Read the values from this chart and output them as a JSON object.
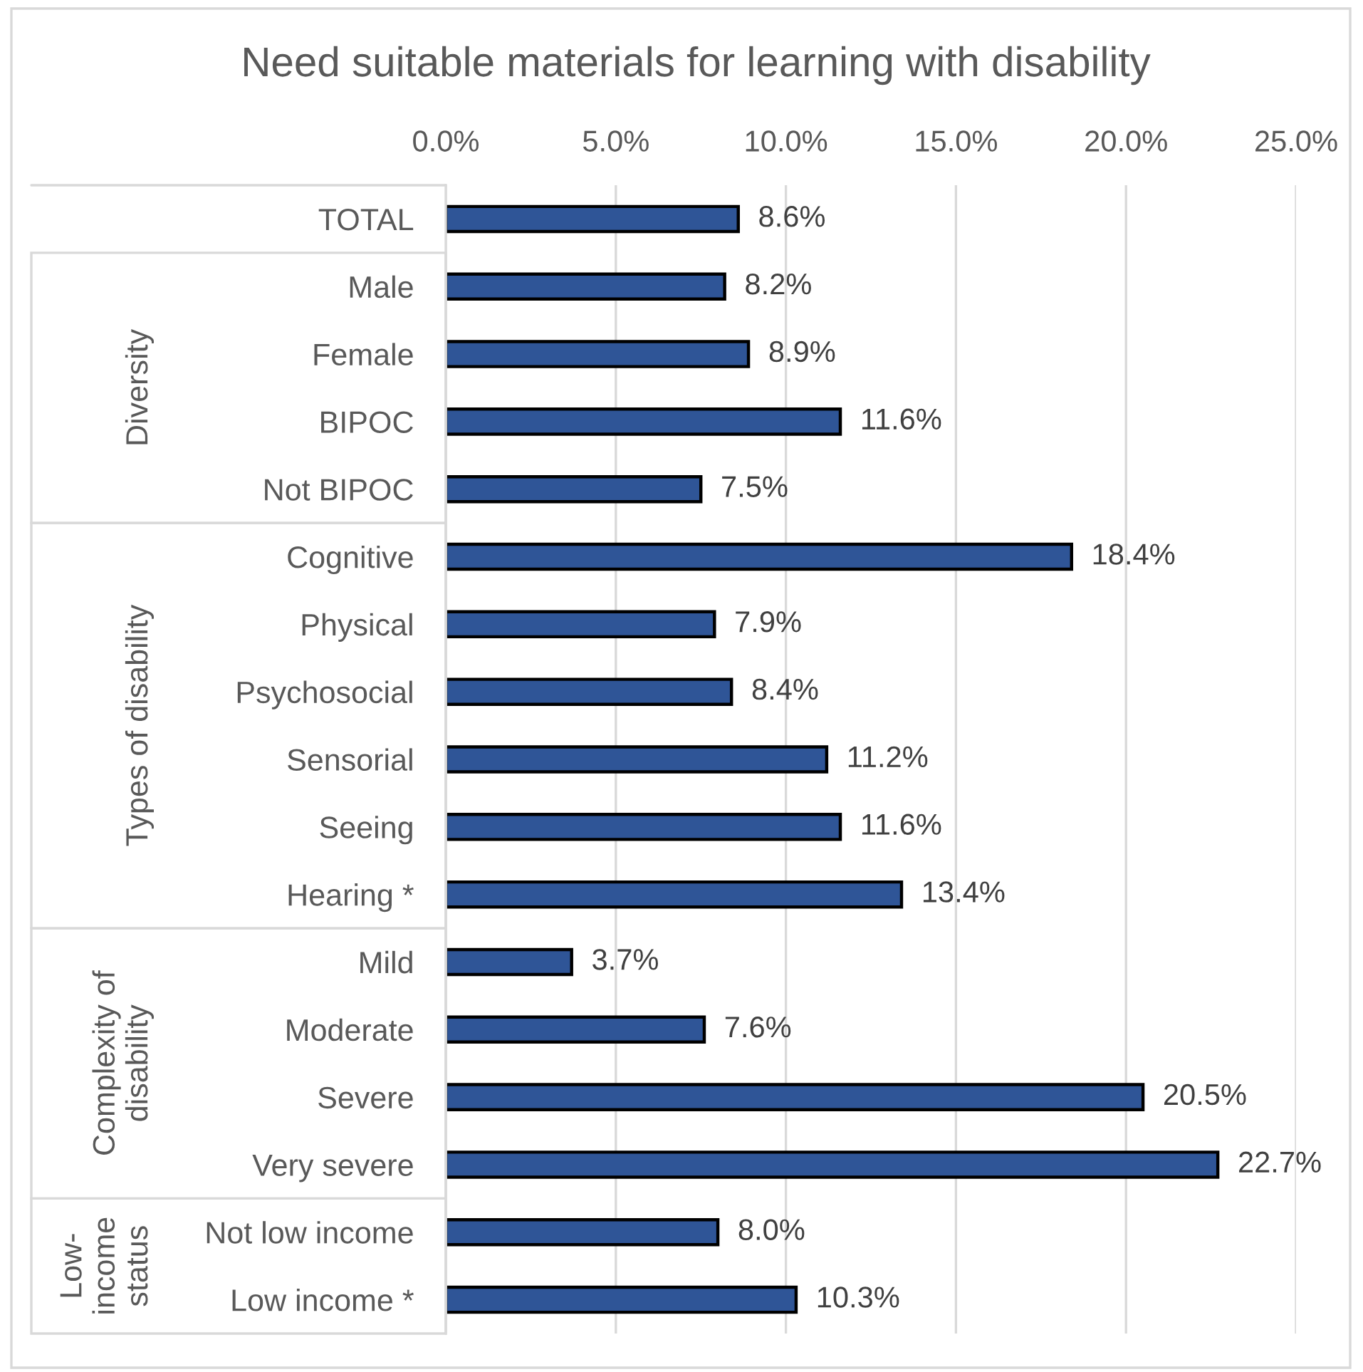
{
  "chart_data": {
    "type": "bar",
    "orientation": "horizontal",
    "title": "Need suitable materials for learning with disability",
    "categories": [
      "TOTAL",
      "Male",
      "Female",
      "BIPOC",
      "Not BIPOC",
      "Cognitive",
      "Physical",
      "Psychosocial",
      "Sensorial",
      "Seeing",
      "Hearing *",
      "Mild",
      "Moderate",
      "Severe",
      "Very severe",
      "Not low income",
      "Low income *"
    ],
    "values": [
      8.6,
      8.2,
      8.9,
      11.6,
      7.5,
      18.4,
      7.9,
      8.4,
      11.2,
      11.6,
      13.4,
      3.7,
      7.6,
      20.5,
      22.7,
      8.0,
      10.3
    ],
    "color": "#2f5597",
    "value_labels": [
      "8.6%",
      "8.2%",
      "8.9%",
      "11.6%",
      "7.5%",
      "18.4%",
      "7.9%",
      "8.4%",
      "11.2%",
      "11.6%",
      "13.4%",
      "3.7%",
      "7.6%",
      "20.5%",
      "22.7%",
      "8.0%",
      "10.3%"
    ],
    "xlim": [
      0,
      25
    ],
    "xticks": [
      {
        "value": 0,
        "label": "0.0%"
      },
      {
        "value": 5,
        "label": "5.0%"
      },
      {
        "value": 10,
        "label": "10.0%"
      },
      {
        "value": 15,
        "label": "15.0%"
      },
      {
        "value": 20,
        "label": "20.0%"
      },
      {
        "value": 25,
        "label": "25.0%"
      }
    ],
    "grid": "x",
    "annotations": [
      "Diversity",
      "Types of disability",
      "Complexity of\ndisability",
      "Low-\nincome\nstatus"
    ]
  }
}
